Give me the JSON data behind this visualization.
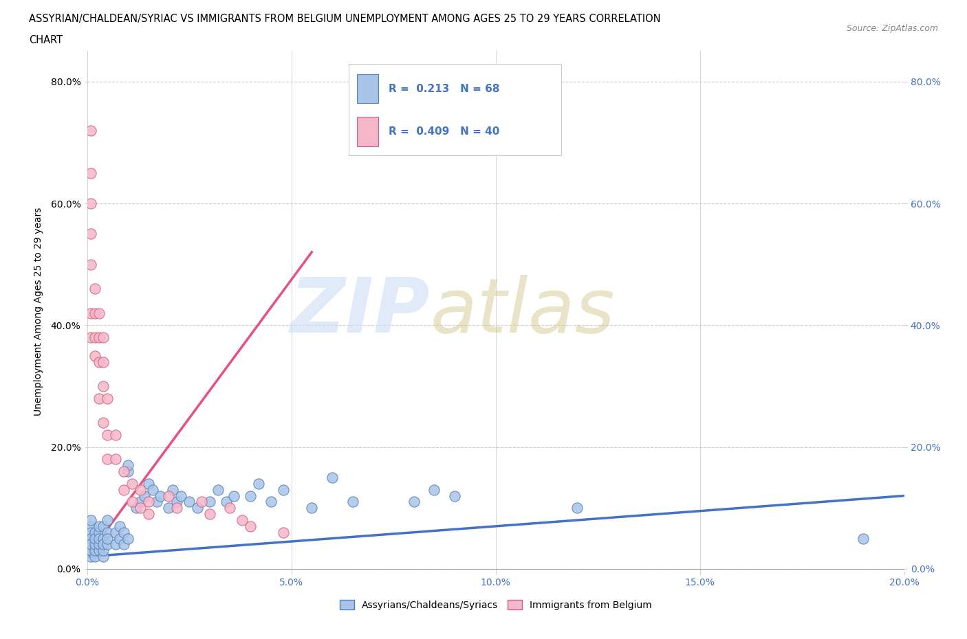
{
  "title_line1": "ASSYRIAN/CHALDEAN/SYRIAC VS IMMIGRANTS FROM BELGIUM UNEMPLOYMENT AMONG AGES 25 TO 29 YEARS CORRELATION",
  "title_line2": "CHART",
  "source": "Source: ZipAtlas.com",
  "ylabel": "Unemployment Among Ages 25 to 29 years",
  "xlim": [
    0.0,
    0.2
  ],
  "ylim": [
    -0.005,
    0.85
  ],
  "xtick_vals": [
    0.0,
    0.05,
    0.1,
    0.15,
    0.2
  ],
  "ytick_vals": [
    0.0,
    0.2,
    0.4,
    0.6,
    0.8
  ],
  "blue_color": "#a8c4e8",
  "pink_color": "#f5b8ca",
  "blue_edge": "#5580b8",
  "pink_edge": "#d06080",
  "trend_blue_color": "#4472c4",
  "trend_pink_color": "#e85080",
  "label_blue": "Assyrians/Chaldeans/Syriacs",
  "label_pink": "Immigrants from Belgium",
  "blue_R": 0.213,
  "pink_R": 0.409,
  "blue_N": 68,
  "pink_N": 40,
  "blue_trend_x": [
    0.0,
    0.2
  ],
  "blue_trend_y": [
    0.02,
    0.12
  ],
  "pink_trend_x": [
    0.0,
    0.055
  ],
  "pink_trend_y": [
    0.02,
    0.52
  ],
  "blue_points_x": [
    0.001,
    0.001,
    0.001,
    0.001,
    0.001,
    0.001,
    0.001,
    0.001,
    0.001,
    0.001,
    0.002,
    0.002,
    0.002,
    0.002,
    0.002,
    0.003,
    0.003,
    0.003,
    0.003,
    0.003,
    0.004,
    0.004,
    0.004,
    0.004,
    0.004,
    0.005,
    0.005,
    0.005,
    0.005,
    0.007,
    0.007,
    0.008,
    0.008,
    0.009,
    0.009,
    0.01,
    0.01,
    0.01,
    0.012,
    0.013,
    0.014,
    0.015,
    0.016,
    0.017,
    0.018,
    0.02,
    0.021,
    0.022,
    0.023,
    0.025,
    0.027,
    0.03,
    0.032,
    0.034,
    0.036,
    0.04,
    0.042,
    0.045,
    0.048,
    0.055,
    0.06,
    0.065,
    0.08,
    0.085,
    0.09,
    0.12,
    0.19
  ],
  "blue_points_y": [
    0.02,
    0.03,
    0.04,
    0.05,
    0.07,
    0.08,
    0.06,
    0.03,
    0.05,
    0.04,
    0.02,
    0.03,
    0.04,
    0.06,
    0.05,
    0.03,
    0.04,
    0.06,
    0.07,
    0.05,
    0.02,
    0.03,
    0.05,
    0.07,
    0.04,
    0.04,
    0.06,
    0.08,
    0.05,
    0.04,
    0.06,
    0.05,
    0.07,
    0.06,
    0.04,
    0.16,
    0.17,
    0.05,
    0.1,
    0.11,
    0.12,
    0.14,
    0.13,
    0.11,
    0.12,
    0.1,
    0.13,
    0.11,
    0.12,
    0.11,
    0.1,
    0.11,
    0.13,
    0.11,
    0.12,
    0.12,
    0.14,
    0.11,
    0.13,
    0.1,
    0.15,
    0.11,
    0.11,
    0.13,
    0.12,
    0.1,
    0.05
  ],
  "pink_points_x": [
    0.001,
    0.001,
    0.001,
    0.001,
    0.001,
    0.001,
    0.001,
    0.002,
    0.002,
    0.002,
    0.002,
    0.003,
    0.003,
    0.003,
    0.003,
    0.004,
    0.004,
    0.004,
    0.004,
    0.005,
    0.005,
    0.005,
    0.007,
    0.007,
    0.009,
    0.009,
    0.011,
    0.011,
    0.013,
    0.013,
    0.015,
    0.015,
    0.02,
    0.022,
    0.028,
    0.03,
    0.035,
    0.038,
    0.04,
    0.048
  ],
  "pink_points_y": [
    0.72,
    0.65,
    0.6,
    0.55,
    0.5,
    0.42,
    0.38,
    0.46,
    0.42,
    0.38,
    0.35,
    0.42,
    0.38,
    0.34,
    0.28,
    0.38,
    0.34,
    0.3,
    0.24,
    0.28,
    0.22,
    0.18,
    0.22,
    0.18,
    0.16,
    0.13,
    0.14,
    0.11,
    0.13,
    0.1,
    0.11,
    0.09,
    0.12,
    0.1,
    0.11,
    0.09,
    0.1,
    0.08,
    0.07,
    0.06
  ]
}
